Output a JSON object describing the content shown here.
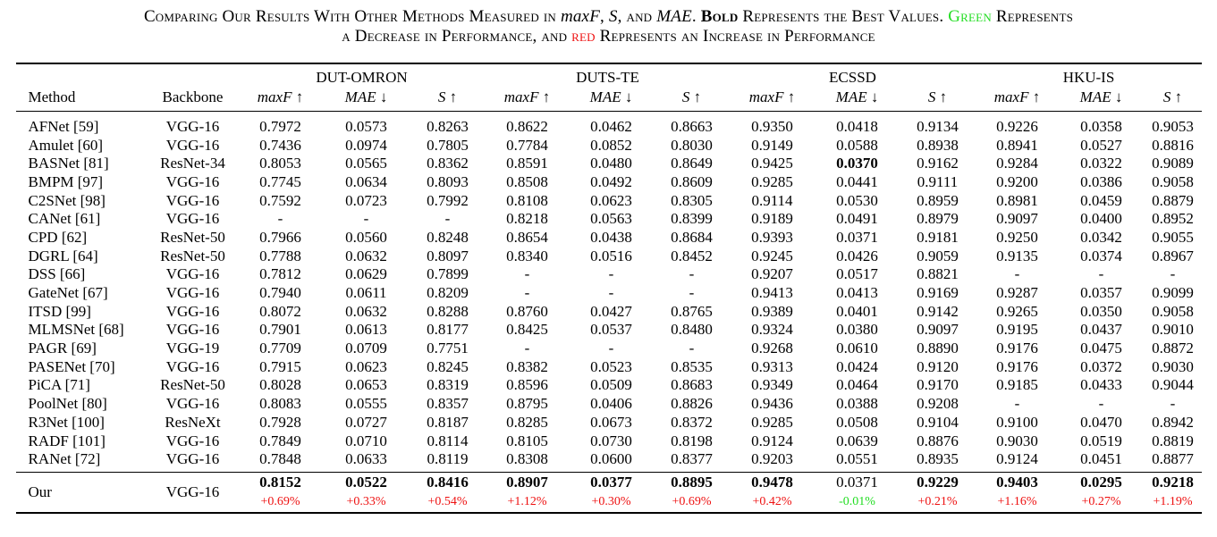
{
  "caption": {
    "line1_part1": "Comparing Our Results With Other Methods Measured in ",
    "m1": "maxF",
    "sep1": ", ",
    "m2": "S",
    "sep2": ", and ",
    "m3": "MAE",
    "sep3": ". ",
    "bold": "Bold",
    "after_bold": " Represents the Best Values. ",
    "green": "Green",
    "after_green": " Represents",
    "line2_part1": "a Decrease in Performance, and ",
    "red": "red",
    "line2_part2": " Represents an Increase in Performance"
  },
  "header": {
    "method": "Method",
    "backbone": "Backbone",
    "datasets": [
      "DUT-OMRON",
      "DUTS-TE",
      "ECSSD",
      "HKU-IS"
    ],
    "metrics": [
      "maxF ↑",
      "MAE ↓",
      "S ↑"
    ]
  },
  "rows": [
    {
      "method": "AFNet [59]",
      "backbone": "VGG-16",
      "v": [
        "0.7972",
        "0.0573",
        "0.8263",
        "0.8622",
        "0.0462",
        "0.8663",
        "0.9350",
        "0.0418",
        "0.9134",
        "0.9226",
        "0.0358",
        "0.9053"
      ]
    },
    {
      "method": "Amulet [60]",
      "backbone": "VGG-16",
      "v": [
        "0.7436",
        "0.0974",
        "0.7805",
        "0.7784",
        "0.0852",
        "0.8030",
        "0.9149",
        "0.0588",
        "0.8938",
        "0.8941",
        "0.0527",
        "0.8816"
      ]
    },
    {
      "method": "BASNet [81]",
      "backbone": "ResNet-34",
      "v": [
        "0.8053",
        "0.0565",
        "0.8362",
        "0.8591",
        "0.0480",
        "0.8649",
        "0.9425",
        "0.0370",
        "0.9162",
        "0.9284",
        "0.0322",
        "0.9089"
      ]
    },
    {
      "method": "BMPM [97]",
      "backbone": "VGG-16",
      "v": [
        "0.7745",
        "0.0634",
        "0.8093",
        "0.8508",
        "0.0492",
        "0.8609",
        "0.9285",
        "0.0441",
        "0.9111",
        "0.9200",
        "0.0386",
        "0.9058"
      ]
    },
    {
      "method": "C2SNet [98]",
      "backbone": "VGG-16",
      "v": [
        "0.7592",
        "0.0723",
        "0.7992",
        "0.8108",
        "0.0623",
        "0.8305",
        "0.9114",
        "0.0530",
        "0.8959",
        "0.8981",
        "0.0459",
        "0.8879"
      ]
    },
    {
      "method": "CANet [61]",
      "backbone": "VGG-16",
      "v": [
        "-",
        "-",
        "-",
        "0.8218",
        "0.0563",
        "0.8399",
        "0.9189",
        "0.0491",
        "0.8979",
        "0.9097",
        "0.0400",
        "0.8952"
      ]
    },
    {
      "method": "CPD [62]",
      "backbone": "ResNet-50",
      "v": [
        "0.7966",
        "0.0560",
        "0.8248",
        "0.8654",
        "0.0438",
        "0.8684",
        "0.9393",
        "0.0371",
        "0.9181",
        "0.9250",
        "0.0342",
        "0.9055"
      ]
    },
    {
      "method": "DGRL [64]",
      "backbone": "ResNet-50",
      "v": [
        "0.7788",
        "0.0632",
        "0.8097",
        "0.8340",
        "0.0516",
        "0.8452",
        "0.9245",
        "0.0426",
        "0.9059",
        "0.9135",
        "0.0374",
        "0.8967"
      ]
    },
    {
      "method": "DSS [66]",
      "backbone": "VGG-16",
      "v": [
        "0.7812",
        "0.0629",
        "0.7899",
        "-",
        "-",
        "-",
        "0.9207",
        "0.0517",
        "0.8821",
        "-",
        "-",
        "-"
      ]
    },
    {
      "method": "GateNet [67]",
      "backbone": "VGG-16",
      "v": [
        "0.7940",
        "0.0611",
        "0.8209",
        "-",
        "-",
        "-",
        "0.9413",
        "0.0413",
        "0.9169",
        "0.9287",
        "0.0357",
        "0.9099"
      ]
    },
    {
      "method": "ITSD [99]",
      "backbone": "VGG-16",
      "v": [
        "0.8072",
        "0.0632",
        "0.8288",
        "0.8760",
        "0.0427",
        "0.8765",
        "0.9389",
        "0.0401",
        "0.9142",
        "0.9265",
        "0.0350",
        "0.9058"
      ]
    },
    {
      "method": "MLMSNet [68]",
      "backbone": "VGG-16",
      "v": [
        "0.7901",
        "0.0613",
        "0.8177",
        "0.8425",
        "0.0537",
        "0.8480",
        "0.9324",
        "0.0380",
        "0.9097",
        "0.9195",
        "0.0437",
        "0.9010"
      ]
    },
    {
      "method": "PAGR [69]",
      "backbone": "VGG-19",
      "v": [
        "0.7709",
        "0.0709",
        "0.7751",
        "-",
        "-",
        "-",
        "0.9268",
        "0.0610",
        "0.8890",
        "0.9176",
        "0.0475",
        "0.8872"
      ]
    },
    {
      "method": "PASENet [70]",
      "backbone": "VGG-16",
      "v": [
        "0.7915",
        "0.0623",
        "0.8245",
        "0.8382",
        "0.0523",
        "0.8535",
        "0.9313",
        "0.0424",
        "0.9120",
        "0.9176",
        "0.0372",
        "0.9030"
      ]
    },
    {
      "method": "PiCA [71]",
      "backbone": "ResNet-50",
      "v": [
        "0.8028",
        "0.0653",
        "0.8319",
        "0.8596",
        "0.0509",
        "0.8683",
        "0.9349",
        "0.0464",
        "0.9170",
        "0.9185",
        "0.0433",
        "0.9044"
      ]
    },
    {
      "method": "PoolNet [80]",
      "backbone": "VGG-16",
      "v": [
        "0.8083",
        "0.0555",
        "0.8357",
        "0.8795",
        "0.0406",
        "0.8826",
        "0.9436",
        "0.0388",
        "0.9208",
        "-",
        "-",
        "-"
      ]
    },
    {
      "method": "R3Net [100]",
      "backbone": "ResNeXt",
      "v": [
        "0.7928",
        "0.0727",
        "0.8187",
        "0.8285",
        "0.0673",
        "0.8372",
        "0.9285",
        "0.0508",
        "0.9104",
        "0.9100",
        "0.0470",
        "0.8942"
      ]
    },
    {
      "method": "RADF [101]",
      "backbone": "VGG-16",
      "v": [
        "0.7849",
        "0.0710",
        "0.8114",
        "0.8105",
        "0.0730",
        "0.8198",
        "0.9124",
        "0.0639",
        "0.8876",
        "0.9030",
        "0.0519",
        "0.8819"
      ]
    },
    {
      "method": "RANet [72]",
      "backbone": "VGG-16",
      "v": [
        "0.7848",
        "0.0633",
        "0.8119",
        "0.8308",
        "0.0600",
        "0.8377",
        "0.9203",
        "0.0551",
        "0.8935",
        "0.9124",
        "0.0451",
        "0.8877"
      ]
    }
  ],
  "bold_cells": [
    [
      2,
      7
    ]
  ],
  "ours": {
    "method": "Our",
    "backbone": "VGG-16",
    "v": [
      "0.8152",
      "0.0522",
      "0.8416",
      "0.8907",
      "0.0377",
      "0.8895",
      "0.9478",
      "0.0371",
      "0.9229",
      "0.9403",
      "0.0295",
      "0.9218"
    ],
    "bold": [
      true,
      true,
      true,
      true,
      true,
      true,
      true,
      false,
      true,
      true,
      true,
      true
    ],
    "delta": [
      "+0.69%",
      "+0.33%",
      "+0.54%",
      "+1.12%",
      "+0.30%",
      "+0.69%",
      "+0.42%",
      "-0.01%",
      "+0.21%",
      "+1.16%",
      "+0.27%",
      "+1.19%"
    ],
    "delta_color": [
      "red",
      "red",
      "red",
      "red",
      "red",
      "red",
      "red",
      "green",
      "red",
      "red",
      "red",
      "red"
    ]
  },
  "colors": {
    "green": "#22dd22",
    "red": "#ee1111"
  }
}
